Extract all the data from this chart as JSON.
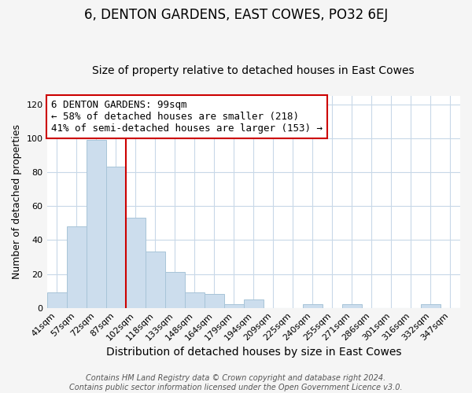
{
  "title": "6, DENTON GARDENS, EAST COWES, PO32 6EJ",
  "subtitle": "Size of property relative to detached houses in East Cowes",
  "xlabel": "Distribution of detached houses by size in East Cowes",
  "ylabel": "Number of detached properties",
  "footer_line1": "Contains HM Land Registry data © Crown copyright and database right 2024.",
  "footer_line2": "Contains public sector information licensed under the Open Government Licence v3.0.",
  "categories": [
    "41sqm",
    "57sqm",
    "72sqm",
    "87sqm",
    "102sqm",
    "118sqm",
    "133sqm",
    "148sqm",
    "164sqm",
    "179sqm",
    "194sqm",
    "209sqm",
    "225sqm",
    "240sqm",
    "255sqm",
    "271sqm",
    "286sqm",
    "301sqm",
    "316sqm",
    "332sqm",
    "347sqm"
  ],
  "values": [
    9,
    48,
    99,
    83,
    53,
    33,
    21,
    9,
    8,
    2,
    5,
    0,
    0,
    2,
    0,
    2,
    0,
    0,
    0,
    2,
    0
  ],
  "bar_color": "#ccdded",
  "bar_edge_color": "#a8c4d8",
  "vline_color": "#cc0000",
  "annotation_text": "6 DENTON GARDENS: 99sqm\n← 58% of detached houses are smaller (218)\n41% of semi-detached houses are larger (153) →",
  "annotation_box_color": "white",
  "annotation_box_edgecolor": "#cc0000",
  "ylim": [
    0,
    125
  ],
  "yticks": [
    0,
    20,
    40,
    60,
    80,
    100,
    120
  ],
  "plot_bg": "#ffffff",
  "fig_bg": "#f5f5f5",
  "grid_color": "#c8d8e8",
  "title_fontsize": 12,
  "subtitle_fontsize": 10,
  "xlabel_fontsize": 10,
  "ylabel_fontsize": 9,
  "tick_fontsize": 8,
  "annotation_fontsize": 9,
  "footer_fontsize": 7
}
